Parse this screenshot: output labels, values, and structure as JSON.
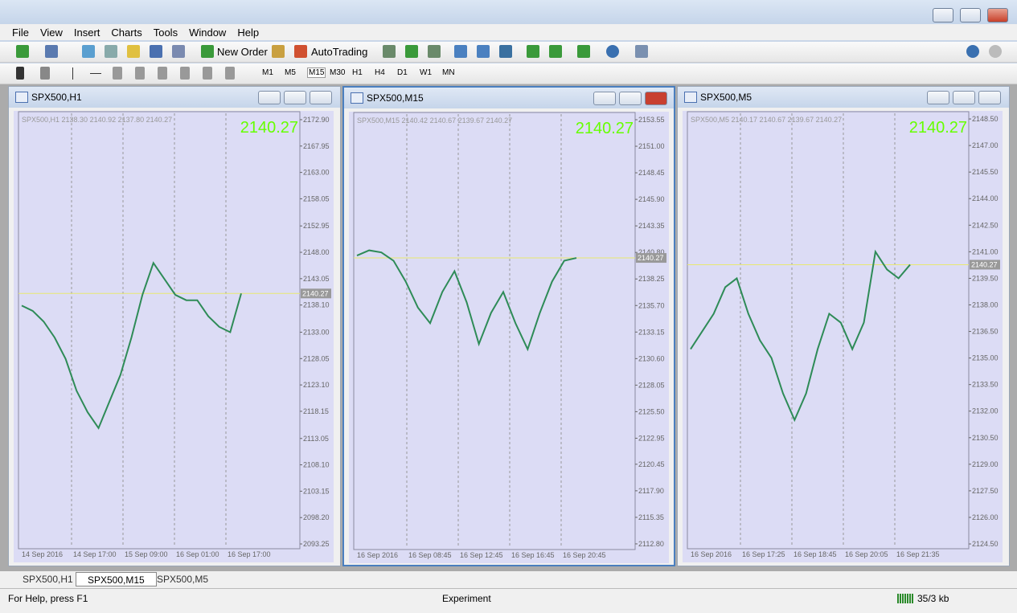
{
  "menu": [
    "File",
    "View",
    "Insert",
    "Charts",
    "Tools",
    "Window",
    "Help"
  ],
  "toolbar": {
    "new_order": "New Order",
    "auto_trading": "AutoTrading",
    "timeframes": [
      "M1",
      "M5",
      "M15",
      "M30",
      "H1",
      "H4",
      "D1",
      "W1",
      "MN"
    ]
  },
  "windows": [
    {
      "title": "SPX500,H1",
      "info": "SPX500,H1  2138.30 2140.92 2137.80 2140.27",
      "chart_data": {
        "type": "line",
        "color": "#2e8b57",
        "current": 2140.27,
        "xlabels": [
          "14 Sep 2016",
          "14 Sep 17:00",
          "15 Sep 09:00",
          "16 Sep 01:00",
          "16 Sep 17:00"
        ],
        "values": [
          2138,
          2137,
          2135,
          2132,
          2128,
          2122,
          2118,
          2115,
          2120,
          2125,
          2132,
          2140,
          2146,
          2143,
          2140,
          2139,
          2139,
          2136,
          2134,
          2133,
          2140.27
        ],
        "ylim": [
          2092.65,
          2174.1
        ],
        "yticks": [
          {
            "value": 2172.9,
            "label": "2172.90"
          },
          2167.95,
          {
            "value": 2163,
            "label": "2163.00"
          },
          2158.05,
          2152.95,
          {
            "value": 2148,
            "label": "2148.00"
          },
          2143.05,
          {
            "value": 2138.1,
            "label": "2138.10"
          },
          {
            "value": 2133,
            "label": "2133.00"
          },
          2128.05,
          {
            "value": 2123.1,
            "label": "2123.10"
          },
          2118.15,
          2113.05,
          {
            "value": 2108.1,
            "label": "2108.10"
          },
          2103.15,
          {
            "value": 2098.2,
            "label": "2098.20"
          },
          2093.25
        ]
      }
    },
    {
      "title": "SPX500,M15",
      "info": "SPX500,M15  2140.42 2140.67 2139.67 2140.27",
      "chart_data": {
        "type": "line",
        "color": "#2e8b57",
        "current": 2140.27,
        "xlabels": [
          "16 Sep 2016",
          "16 Sep 08:45",
          "16 Sep 12:45",
          "16 Sep 16:45",
          "16 Sep 20:45"
        ],
        "values": [
          2140.5,
          2141,
          2140.8,
          2140,
          2138,
          2135.5,
          2134,
          2137,
          2139,
          2136,
          2132,
          2135,
          2137,
          2134,
          2131.5,
          2135,
          2138,
          2140,
          2140.27
        ],
        "ylim": [
          2112.41,
          2154.09
        ],
        "yticks": [
          2153.55,
          {
            "value": 2151,
            "label": "2151.00"
          },
          2148.45,
          {
            "value": 2145.9,
            "label": "2145.90"
          },
          2143.35,
          {
            "value": 2140.8,
            "label": "2140.80"
          },
          2138.25,
          {
            "value": 2135.7,
            "label": "2135.70"
          },
          2133.15,
          {
            "value": 2130.6,
            "label": "2130.60"
          },
          2128.05,
          {
            "value": 2125.5,
            "label": "2125.50"
          },
          2122.95,
          2120.45,
          {
            "value": 2117.9,
            "label": "2117.90"
          },
          2115.35,
          {
            "value": 2112.8,
            "label": "2112.80"
          }
        ]
      }
    },
    {
      "title": "SPX500,M5",
      "info": "SPX500,M5  2140.17 2140.67 2139.67 2140.27",
      "chart_data": {
        "type": "line",
        "color": "#2e8b57",
        "current": 2140.27,
        "xlabels": [
          "16 Sep 2016",
          "16 Sep 17:25",
          "16 Sep 18:45",
          "16 Sep 20:05",
          "16 Sep 21:35"
        ],
        "values": [
          2135.5,
          2136.5,
          2137.5,
          2139,
          2139.5,
          2137.5,
          2136,
          2135,
          2133,
          2131.5,
          2133,
          2135.5,
          2137.5,
          2137,
          2135.5,
          2137,
          2141,
          2140,
          2139.5,
          2140.27
        ],
        "ylim": [
          2124.32,
          2148.82
        ],
        "yticks": [
          {
            "value": 2148.5,
            "label": "2148.50"
          },
          {
            "value": 2147,
            "label": "2147.00"
          },
          {
            "value": 2145.5,
            "label": "2145.50"
          },
          {
            "value": 2144,
            "label": "2144.00"
          },
          {
            "value": 2142.5,
            "label": "2142.50"
          },
          {
            "value": 2141,
            "label": "2141.00"
          },
          {
            "value": 2139.5,
            "label": "2139.50"
          },
          {
            "value": 2138,
            "label": "2138.00"
          },
          {
            "value": 2136.5,
            "label": "2136.50"
          },
          {
            "value": 2135,
            "label": "2135.00"
          },
          {
            "value": 2133.5,
            "label": "2133.50"
          },
          {
            "value": 2132,
            "label": "2132.00"
          },
          {
            "value": 2130.5,
            "label": "2130.50"
          },
          {
            "value": 2129,
            "label": "2129.00"
          },
          {
            "value": 2127.5,
            "label": "2127.50"
          },
          {
            "value": 2126,
            "label": "2126.00"
          },
          {
            "value": 2124.5,
            "label": "2124.50"
          }
        ]
      }
    }
  ],
  "tabs": [
    "SPX500,H1",
    "SPX500,M15",
    "SPX500,M5"
  ],
  "status": {
    "help": "For Help, press F1",
    "profile": "Experiment",
    "traffic": "35/3 kb"
  }
}
